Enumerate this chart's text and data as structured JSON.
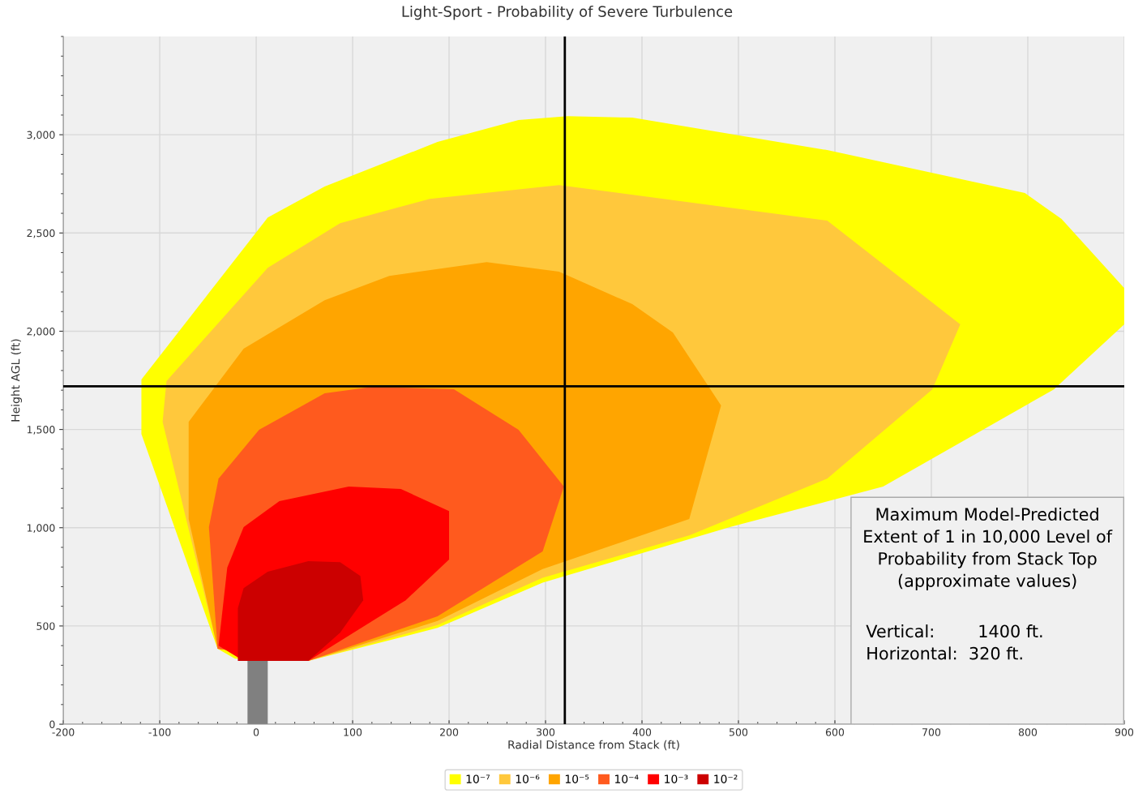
{
  "chart_data": {
    "type": "area",
    "title": "Light-Sport - Probability of Severe Turbulence",
    "xlabel": "Radial Distance from Stack (ft)",
    "ylabel": "Height AGL (ft)",
    "xlim": [
      -200,
      900
    ],
    "ylim": [
      0,
      3500
    ],
    "xticks": [
      -200,
      -100,
      0,
      100,
      200,
      300,
      400,
      500,
      600,
      700,
      800,
      900
    ],
    "yticks": [
      0,
      500,
      {
        "value": 1000,
        "label": "1,000"
      },
      {
        "value": 1500,
        "label": "1,500"
      },
      {
        "value": 2000,
        "label": "2,000"
      },
      {
        "value": 2500,
        "label": "2,500"
      },
      {
        "value": 3000,
        "label": "3,000"
      }
    ],
    "grid": true,
    "legend": "bottom",
    "series": [
      {
        "name": "10⁻⁷",
        "color": "#ffff00",
        "x": [
          -40,
          -119,
          -119,
          12,
          71,
          188,
          272,
          323,
          390,
          592,
          797,
          835,
          900,
          900,
          827,
          650,
          491,
          297,
          188,
          54,
          -22
        ],
        "values": [
          384,
          1477,
          1754,
          2579,
          2736,
          2963,
          3075,
          3095,
          3087,
          2922,
          2703,
          2571,
          2220,
          2035,
          1704,
          1209,
          1003,
          720,
          490,
          322,
          334
        ]
      },
      {
        "name": "10⁻⁶",
        "color": "#ffc83c",
        "x": [
          -40,
          -97,
          -93,
          12,
          87,
          180,
          314,
          592,
          730,
          701,
          592,
          449,
          297,
          188,
          54
        ],
        "values": [
          384,
          1539,
          1746,
          2323,
          2550,
          2674,
          2744,
          2563,
          2035,
          1704,
          1250,
          961,
          745,
          505,
          322
        ]
      },
      {
        "name": "10⁻⁵",
        "color": "#ffa500",
        "x": [
          -40,
          -70,
          -70,
          -13,
          71,
          138,
          239,
          314,
          390,
          432,
          482,
          449,
          297,
          188,
          54
        ],
        "values": [
          384,
          1044,
          1539,
          1911,
          2158,
          2282,
          2352,
          2303,
          2138,
          1994,
          1622,
          1044,
          790,
          525,
          322
        ]
      },
      {
        "name": "10⁻⁴",
        "color": "#ff5a1e",
        "x": [
          -40,
          -49,
          -39,
          3,
          71,
          121,
          205,
          272,
          319,
          297,
          188,
          54
        ],
        "values": [
          384,
          1003,
          1250,
          1498,
          1684,
          1717,
          1705,
          1498,
          1209,
          879,
          549,
          322
        ]
      },
      {
        "name": "10⁻³",
        "color": "#ff0000",
        "x": [
          -39,
          -30,
          -13,
          24,
          96,
          150,
          200,
          200,
          155,
          54,
          -13
        ],
        "values": [
          400,
          797,
          1003,
          1135,
          1209,
          1197,
          1085,
          838,
          631,
          322,
          322
        ]
      },
      {
        "name": "10⁻²",
        "color": "#cc0000",
        "x": [
          -19,
          -19,
          -13,
          12,
          54,
          87,
          108,
          111,
          87,
          54
        ],
        "values": [
          322,
          590,
          693,
          776,
          830,
          825,
          755,
          631,
          466,
          322
        ]
      },
      {
        "color": "#808080",
        "x": [
          -9,
          12,
          12,
          -9
        ],
        "values": [
          0,
          0,
          322,
          322
        ]
      }
    ],
    "ref_lines": [
      {
        "axis": "x",
        "value": 320,
        "color": "#000000"
      },
      {
        "axis": "y",
        "value": 1720,
        "color": "#000000"
      }
    ],
    "annotations": [
      "Maximum Model-Predicted\nExtent of 1 in 10,000 Level of\nProbability from Stack Top\n(approximate values)",
      "Vertical:        1400 ft.\nHorizontal:  320 ft."
    ]
  }
}
